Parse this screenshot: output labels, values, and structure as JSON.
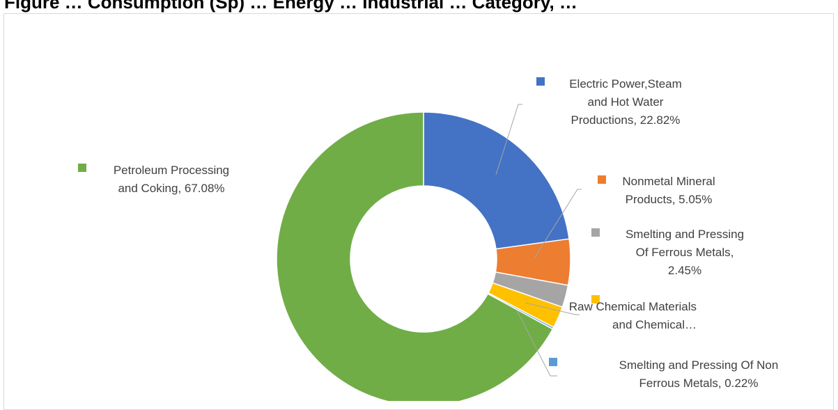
{
  "title": "Figure … Consumption (Sp) … Energy … Industrial … Category, …",
  "chart_data": {
    "type": "donut",
    "title": "",
    "legend": "data-labels",
    "slices": [
      {
        "name": "Electric Power,Steam and Hot Water Productions",
        "value": 22.82,
        "label_lines": [
          "Electric Power,Steam",
          "and Hot Water",
          "Productions, 22.82%"
        ],
        "color": "#4472C4"
      },
      {
        "name": "Nonmetal Mineral Products",
        "value": 5.05,
        "label_lines": [
          "Nonmetal Mineral",
          "Products, 5.05%"
        ],
        "color": "#ED7D31"
      },
      {
        "name": "Smelting and Pressing Of Ferrous Metals",
        "value": 2.45,
        "label_lines": [
          "Smelting and Pressing",
          "Of Ferrous Metals,",
          "2.45%"
        ],
        "color": "#A5A5A5"
      },
      {
        "name": "Raw Chemical Materials and Chemical…",
        "value": 2.38,
        "label_lines": [
          "Raw Chemical Materials",
          "and Chemical…"
        ],
        "color": "#FFC000"
      },
      {
        "name": "Smelting and Pressing Of Non Ferrous Metals",
        "value": 0.22,
        "label_lines": [
          "Smelting and Pressing Of Non",
          "Ferrous Metals, 0.22%"
        ],
        "color": "#5B9BD5"
      },
      {
        "name": "Petroleum Processing and Coking",
        "value": 67.08,
        "label_lines": [
          "Petroleum Processing",
          "and Coking, 67.08%"
        ],
        "color": "#70AD47"
      }
    ]
  }
}
